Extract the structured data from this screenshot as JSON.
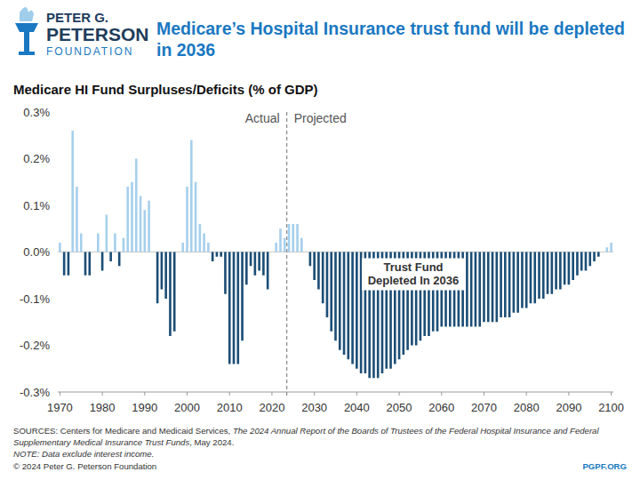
{
  "logo": {
    "lines": [
      "PETER G.",
      "PETERSON",
      "FOUNDATION"
    ]
  },
  "chart_data": {
    "type": "bar",
    "title": "Medicare’s Hospital Insurance trust fund will be depleted in 2036",
    "title_lines": [
      "Medicare’s Hospital Insurance trust fund will be depleted",
      "in 2036"
    ],
    "subtitle": "Medicare HI Fund Surpluses/Deficits (% of GDP)",
    "x": [
      1970,
      1971,
      1972,
      1973,
      1974,
      1975,
      1976,
      1977,
      1978,
      1979,
      1980,
      1981,
      1982,
      1983,
      1984,
      1985,
      1986,
      1987,
      1988,
      1989,
      1990,
      1991,
      1992,
      1993,
      1994,
      1995,
      1996,
      1997,
      1998,
      1999,
      2000,
      2001,
      2002,
      2003,
      2004,
      2005,
      2006,
      2007,
      2008,
      2009,
      2010,
      2011,
      2012,
      2013,
      2014,
      2015,
      2016,
      2017,
      2018,
      2019,
      2020,
      2021,
      2022,
      2023,
      2024,
      2025,
      2026,
      2027,
      2028,
      2029,
      2030,
      2031,
      2032,
      2033,
      2034,
      2035,
      2036,
      2037,
      2038,
      2039,
      2040,
      2041,
      2042,
      2043,
      2044,
      2045,
      2046,
      2047,
      2048,
      2049,
      2050,
      2051,
      2052,
      2053,
      2054,
      2055,
      2056,
      2057,
      2058,
      2059,
      2060,
      2061,
      2062,
      2063,
      2064,
      2065,
      2066,
      2067,
      2068,
      2069,
      2070,
      2071,
      2072,
      2073,
      2074,
      2075,
      2076,
      2077,
      2078,
      2079,
      2080,
      2081,
      2082,
      2083,
      2084,
      2085,
      2086,
      2087,
      2088,
      2089,
      2090,
      2091,
      2092,
      2093,
      2094,
      2095,
      2096,
      2097,
      2098,
      2099,
      2100
    ],
    "values": [
      0.02,
      -0.05,
      -0.05,
      0.26,
      0.14,
      0.04,
      -0.05,
      -0.05,
      0.0,
      0.04,
      -0.04,
      0.08,
      -0.02,
      0.04,
      -0.03,
      0.03,
      0.14,
      0.15,
      0.2,
      0.12,
      0.09,
      0.11,
      0.0,
      -0.11,
      -0.08,
      -0.1,
      -0.18,
      -0.17,
      0.0,
      0.02,
      0.14,
      0.24,
      0.15,
      0.06,
      0.04,
      0.02,
      -0.02,
      -0.01,
      -0.01,
      -0.09,
      -0.24,
      -0.24,
      -0.24,
      -0.19,
      -0.07,
      -0.03,
      -0.05,
      -0.04,
      -0.05,
      -0.08,
      0.0,
      0.02,
      0.05,
      0.03,
      0.06,
      0.06,
      0.06,
      0.03,
      0.0,
      -0.03,
      -0.06,
      -0.08,
      -0.11,
      -0.14,
      -0.17,
      -0.19,
      -0.21,
      -0.22,
      -0.23,
      -0.24,
      -0.25,
      -0.26,
      -0.26,
      -0.27,
      -0.27,
      -0.27,
      -0.26,
      -0.25,
      -0.25,
      -0.24,
      -0.23,
      -0.22,
      -0.21,
      -0.2,
      -0.2,
      -0.19,
      -0.18,
      -0.18,
      -0.17,
      -0.17,
      -0.16,
      -0.16,
      -0.16,
      -0.16,
      -0.16,
      -0.16,
      -0.16,
      -0.16,
      -0.16,
      -0.16,
      -0.15,
      -0.15,
      -0.15,
      -0.15,
      -0.14,
      -0.14,
      -0.14,
      -0.13,
      -0.13,
      -0.12,
      -0.12,
      -0.11,
      -0.11,
      -0.1,
      -0.1,
      -0.09,
      -0.09,
      -0.08,
      -0.08,
      -0.07,
      -0.07,
      -0.06,
      -0.05,
      -0.04,
      -0.04,
      -0.03,
      -0.02,
      -0.01,
      0.0,
      0.01,
      0.02
    ],
    "colors": [
      "#a6d0ec",
      "#1c4e76",
      "#1c4e76",
      "#a6d0ec",
      "#a6d0ec",
      "#a6d0ec",
      "#1c4e76",
      "#1c4e76",
      "#1c4e76",
      "#a6d0ec",
      "#1c4e76",
      "#a6d0ec",
      "#1c4e76",
      "#a6d0ec",
      "#1c4e76",
      "#a6d0ec",
      "#a6d0ec",
      "#a6d0ec",
      "#a6d0ec",
      "#a6d0ec",
      "#a6d0ec",
      "#a6d0ec",
      "#1c4e76",
      "#1c4e76",
      "#1c4e76",
      "#1c4e76",
      "#1c4e76",
      "#1c4e76",
      "#1c4e76",
      "#a6d0ec",
      "#a6d0ec",
      "#a6d0ec",
      "#a6d0ec",
      "#a6d0ec",
      "#a6d0ec",
      "#a6d0ec",
      "#1c4e76",
      "#1c4e76",
      "#1c4e76",
      "#1c4e76",
      "#1c4e76",
      "#1c4e76",
      "#1c4e76",
      "#1c4e76",
      "#1c4e76",
      "#1c4e76",
      "#1c4e76",
      "#1c4e76",
      "#1c4e76",
      "#1c4e76",
      "#1c4e76",
      "#a6d0ec",
      "#a6d0ec",
      "#a6d0ec",
      "#a6d0ec",
      "#a6d0ec",
      "#a6d0ec",
      "#a6d0ec",
      "#1c4e76",
      "#1c4e76",
      "#1c4e76",
      "#1c4e76",
      "#1c4e76",
      "#1c4e76",
      "#1c4e76",
      "#1c4e76",
      "#1c4e76",
      "#1c4e76",
      "#1c4e76",
      "#1c4e76",
      "#1c4e76",
      "#1c4e76",
      "#1c4e76",
      "#1c4e76",
      "#1c4e76",
      "#1c4e76",
      "#1c4e76",
      "#1c4e76",
      "#1c4e76",
      "#1c4e76",
      "#1c4e76",
      "#1c4e76",
      "#1c4e76",
      "#1c4e76",
      "#1c4e76",
      "#1c4e76",
      "#1c4e76",
      "#1c4e76",
      "#1c4e76",
      "#1c4e76",
      "#1c4e76",
      "#1c4e76",
      "#1c4e76",
      "#1c4e76",
      "#1c4e76",
      "#1c4e76",
      "#1c4e76",
      "#1c4e76",
      "#1c4e76",
      "#1c4e76",
      "#1c4e76",
      "#1c4e76",
      "#1c4e76",
      "#1c4e76",
      "#1c4e76",
      "#1c4e76",
      "#1c4e76",
      "#1c4e76",
      "#1c4e76",
      "#1c4e76",
      "#1c4e76",
      "#1c4e76",
      "#1c4e76",
      "#1c4e76",
      "#1c4e76",
      "#1c4e76",
      "#1c4e76",
      "#1c4e76",
      "#1c4e76",
      "#1c4e76",
      "#1c4e76",
      "#1c4e76",
      "#1c4e76",
      "#1c4e76",
      "#1c4e76",
      "#1c4e76",
      "#1c4e76",
      "#1c4e76",
      "#1c4e76",
      "#a6d0ec",
      "#a6d0ec"
    ],
    "xlim": [
      1969.5,
      2100.5
    ],
    "xticks": [
      1970,
      1980,
      1990,
      2000,
      2010,
      2020,
      2030,
      2040,
      2050,
      2060,
      2070,
      2080,
      2090,
      2100
    ],
    "ylim": [
      -0.3,
      0.3
    ],
    "yticks": [
      {
        "value": -0.3,
        "label": "-0.3%"
      },
      {
        "value": -0.2,
        "label": "-0.2%"
      },
      {
        "value": -0.1,
        "label": "-0.1%"
      },
      {
        "value": 0.0,
        "label": "0.0%"
      },
      {
        "value": 0.1,
        "label": "0.1%"
      },
      {
        "value": 0.2,
        "label": "0.2%"
      },
      {
        "value": 0.3,
        "label": "0.3%"
      }
    ],
    "grid": false,
    "divider": {
      "x": 2023.5,
      "left_label": "Actual",
      "right_label": "Projected"
    },
    "annotation": {
      "lines": [
        "Trust Fund",
        "Depleted In 2036"
      ]
    }
  },
  "footer": {
    "source_prefix": "SOURCES: Centers for Medicare and Medicaid Services, ",
    "source_title": "The 2024 Annual Report of the Boards of Trustees of the Federal Hospital Insurance and Federal Supplementary Medical Insurance Trust Funds",
    "source_suffix": ", May 2024.",
    "note": "NOTE: Data exclude interest income.",
    "copyright": "© 2024 Peter G. Peterson Foundation",
    "site": "PGPF.ORG"
  }
}
